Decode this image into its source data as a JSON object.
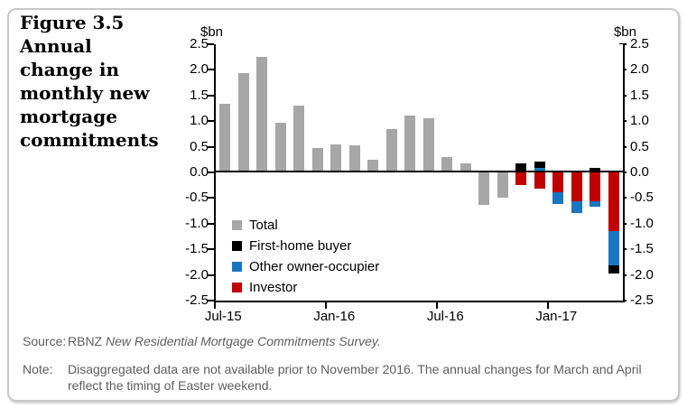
{
  "figure": {
    "title_lines": [
      "Figure 3.5",
      "Annual",
      "change in",
      "monthly new",
      "mortgage",
      "commitments"
    ]
  },
  "chart_data": {
    "type": "bar",
    "subtype": "stacked-bar-with-total",
    "unit_label_left": "$bn",
    "unit_label_right": "$bn",
    "ylim": [
      -2.5,
      2.5
    ],
    "y_tick_step": 0.5,
    "y_tick_labels": [
      "2.5",
      "2.0",
      "1.5",
      "1.0",
      "0.5",
      "0.0",
      "-0.5",
      "-1.0",
      "-1.5",
      "-2.0",
      "-2.5"
    ],
    "x_tick_labels": [
      {
        "label": "Jul-15",
        "month_index": 0
      },
      {
        "label": "Jan-16",
        "month_index": 6
      },
      {
        "label": "Jul-16",
        "month_index": 12
      },
      {
        "label": "Jan-17",
        "month_index": 18
      }
    ],
    "categories": [
      "Jul-15",
      "Aug-15",
      "Sep-15",
      "Oct-15",
      "Nov-15",
      "Dec-15",
      "Jan-16",
      "Feb-16",
      "Mar-16",
      "Apr-16",
      "May-16",
      "Jun-16",
      "Jul-16",
      "Aug-16",
      "Sep-16",
      "Oct-16",
      "Nov-16",
      "Dec-16",
      "Jan-17",
      "Feb-17",
      "Mar-17",
      "Apr-17"
    ],
    "series": [
      {
        "name": "Total",
        "color_key": "total",
        "values": [
          1.33,
          1.93,
          2.25,
          0.97,
          1.31,
          0.48,
          0.55,
          0.53,
          0.25,
          0.84,
          1.11,
          1.05,
          0.3,
          0.18,
          -0.64,
          -0.49,
          null,
          null,
          null,
          null,
          null,
          null
        ]
      },
      {
        "name": "First-home buyer",
        "color_key": "fhb",
        "values": [
          null,
          null,
          null,
          null,
          null,
          null,
          null,
          null,
          null,
          null,
          null,
          null,
          null,
          null,
          null,
          null,
          0.18,
          0.13,
          0.0,
          0.0,
          0.08,
          -0.16
        ]
      },
      {
        "name": "Other owner-occupier",
        "color_key": "other",
        "values": [
          null,
          null,
          null,
          null,
          null,
          null,
          null,
          null,
          null,
          null,
          null,
          null,
          null,
          null,
          null,
          null,
          0.0,
          0.09,
          -0.22,
          -0.23,
          -0.1,
          -0.67
        ]
      },
      {
        "name": "Investor",
        "color_key": "investor",
        "values": [
          null,
          null,
          null,
          null,
          null,
          null,
          null,
          null,
          null,
          null,
          null,
          null,
          null,
          null,
          null,
          null,
          -0.24,
          -0.31,
          -0.39,
          -0.57,
          -0.57,
          -1.15
        ]
      }
    ],
    "stack_order_from_zero": [
      "investor",
      "other",
      "fhb"
    ],
    "legend": [
      {
        "label": "Total",
        "color_key": "total"
      },
      {
        "label": "First-home buyer",
        "color_key": "fhb"
      },
      {
        "label": "Other owner-occupier",
        "color_key": "other"
      },
      {
        "label": "Investor",
        "color_key": "investor"
      }
    ],
    "grid": false,
    "legend_position": "inside-lower-left"
  },
  "colors": {
    "total": "#A6A6A6",
    "fhb": "#000000",
    "other": "#1B76C2",
    "investor": "#C00000",
    "axis": "#000000"
  },
  "footer": {
    "source_label": "Source:",
    "source_text": "RBNZ",
    "source_italic": "New Residential Mortgage Commitments Survey.",
    "note_label": "Note:",
    "note_text": "Disaggregated data are not available prior to November 2016. The annual changes for March and April reflect the timing of Easter weekend."
  }
}
